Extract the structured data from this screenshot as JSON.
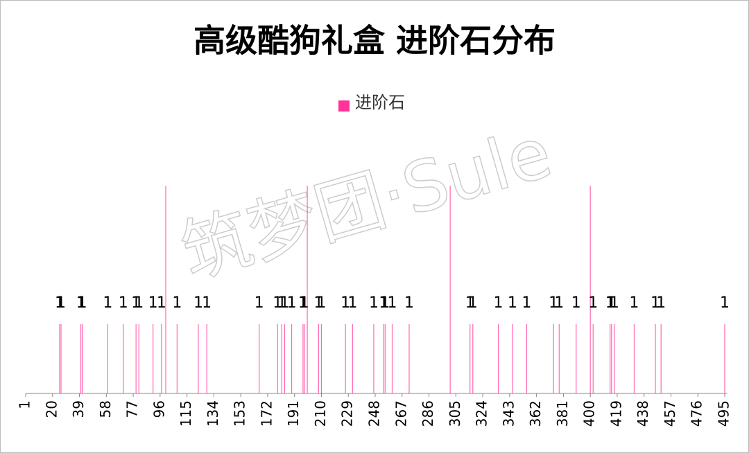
{
  "chart_data": {
    "type": "bar",
    "title": "高级酷狗礼盒 进阶石分布",
    "watermark": "筑梦团·Sule",
    "series": [
      {
        "name": "进阶石",
        "color": "#ff3399",
        "x": [
          25,
          26,
          40,
          41,
          59,
          70,
          79,
          81,
          91,
          97,
          100,
          108,
          123,
          129,
          166,
          179,
          182,
          184,
          189,
          197,
          198,
          200,
          208,
          210,
          227,
          232,
          247,
          254,
          255,
          260,
          272,
          301,
          315,
          317,
          335,
          345,
          355,
          374,
          378,
          390,
          400,
          402,
          414,
          415,
          417,
          431,
          446,
          450,
          495
        ],
        "values": [
          1,
          1,
          1,
          1,
          1,
          1,
          1,
          1,
          1,
          1,
          3,
          1,
          1,
          1,
          1,
          1,
          1,
          1,
          1,
          1,
          1,
          3,
          1,
          1,
          1,
          1,
          1,
          1,
          1,
          1,
          1,
          3,
          1,
          1,
          1,
          1,
          1,
          1,
          1,
          1,
          3,
          1,
          1,
          1,
          1,
          1,
          1,
          1,
          1
        ],
        "value_labels": [
          "1",
          "1",
          "1",
          "1",
          "1",
          "1",
          "1",
          "1",
          "1",
          "1",
          null,
          "1",
          "1",
          "1",
          "1",
          "1",
          "1",
          "1",
          "1",
          "1",
          "1",
          null,
          "1",
          "1",
          "1",
          "1",
          "1",
          "1",
          "1",
          "1",
          "1",
          null,
          "1",
          "1",
          "1",
          "1",
          "1",
          "1",
          "1",
          "1",
          null,
          "1",
          "1",
          "1",
          "1",
          "1",
          "1",
          "1",
          "1"
        ]
      }
    ],
    "xlim": [
      1,
      495
    ],
    "xticks": [
      1,
      20,
      39,
      58,
      77,
      96,
      115,
      134,
      153,
      172,
      191,
      210,
      229,
      248,
      267,
      286,
      305,
      324,
      343,
      362,
      381,
      400,
      419,
      438,
      457,
      476,
      495
    ],
    "ylim": [
      0,
      5
    ],
    "legend": "top"
  }
}
